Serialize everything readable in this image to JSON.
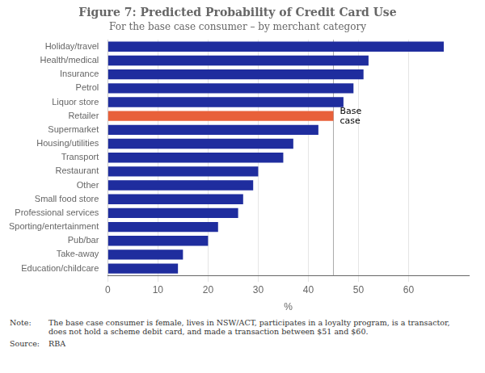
{
  "chart_data": {
    "type": "bar",
    "orientation": "horizontal",
    "title": "Figure 7: Predicted Probability of Credit Card Use",
    "subtitle": "For the base case consumer – by merchant category",
    "xlabel": "%",
    "categories": [
      "Holiday/travel",
      "Health/medical",
      "Insurance",
      "Petrol",
      "Liquor store",
      "Retailer",
      "Supermarket",
      "Housing/utilities",
      "Transport",
      "Restaurant",
      "Other",
      "Small food store",
      "Professional services",
      "Sporting/entertainment",
      "Pub/bar",
      "Take-away",
      "Education/childcare"
    ],
    "values": [
      67,
      52,
      51,
      49,
      47,
      45,
      42,
      37,
      35,
      30,
      29,
      27,
      26,
      22,
      20,
      15,
      14
    ],
    "colors": [
      "#1f2d9e",
      "#1f2d9e",
      "#1f2d9e",
      "#1f2d9e",
      "#1f2d9e",
      "#e8603a",
      "#1f2d9e",
      "#1f2d9e",
      "#1f2d9e",
      "#1f2d9e",
      "#1f2d9e",
      "#1f2d9e",
      "#1f2d9e",
      "#1f2d9e",
      "#1f2d9e",
      "#1f2d9e",
      "#1f2d9e"
    ],
    "xlim": [
      0,
      72
    ],
    "xticks": [
      0,
      10,
      20,
      30,
      40,
      50,
      60
    ],
    "grid": true,
    "annotations": [
      {
        "type": "vline",
        "x": 45,
        "label": "Base\ncase",
        "category": "Retailer",
        "color": "#aaaaaa"
      }
    ],
    "notes": [
      {
        "label": "Note:",
        "text": "The base case consumer is female, lives in NSW/ACT, participates in a loyalty program, is a transactor,\ndoes not hold a scheme debit card, and made a transaction between $51 and $60."
      },
      {
        "label": "Source:",
        "text": "RBA"
      }
    ]
  }
}
